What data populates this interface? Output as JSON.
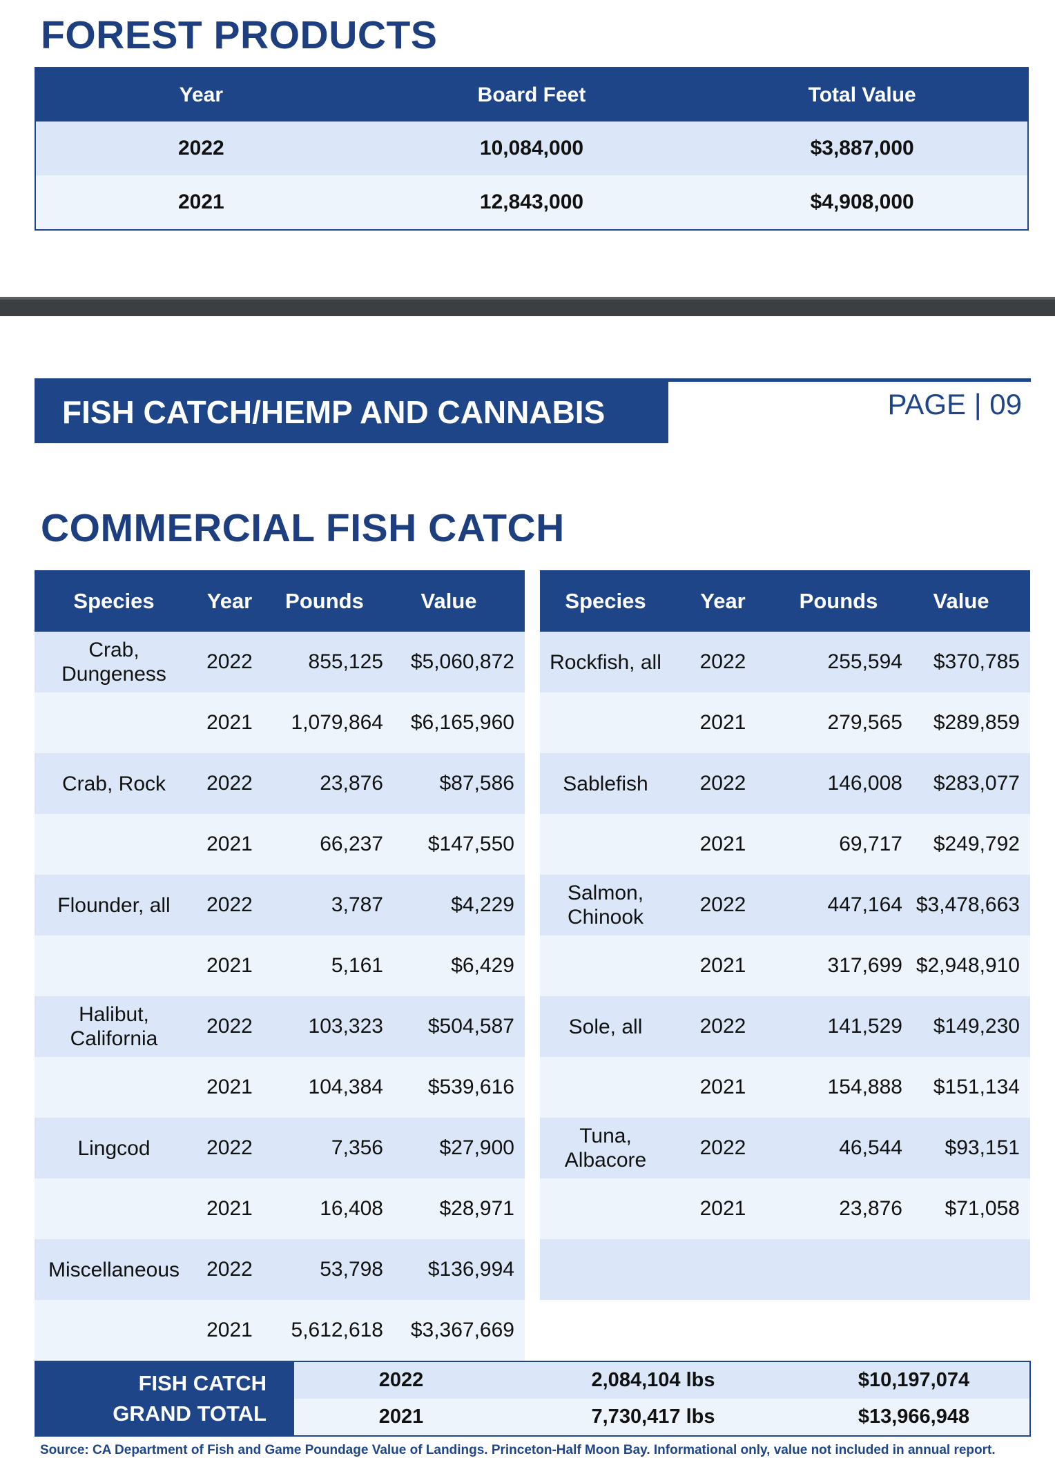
{
  "forest": {
    "title": "FOREST PRODUCTS",
    "headers": {
      "year": "Year",
      "board_feet": "Board Feet",
      "total_value": "Total Value"
    },
    "rows": [
      {
        "year": "2022",
        "board_feet": "10,084,000",
        "total_value": "$3,887,000"
      },
      {
        "year": "2021",
        "board_feet": "12,843,000",
        "total_value": "$4,908,000"
      }
    ]
  },
  "section": {
    "title": "FISH CATCH/HEMP AND CANNABIS",
    "page": "PAGE | 09"
  },
  "fish": {
    "title": "COMMERCIAL FISH CATCH",
    "headers": {
      "species": "Species",
      "year": "Year",
      "pounds": "Pounds",
      "value": "Value"
    },
    "left": [
      {
        "species": "Crab, Dungeness",
        "year": "2022",
        "pounds": "855,125",
        "value": "$5,060,872"
      },
      {
        "species": "",
        "year": "2021",
        "pounds": "1,079,864",
        "value": "$6,165,960"
      },
      {
        "species": "Crab, Rock",
        "year": "2022",
        "pounds": "23,876",
        "value": "$87,586"
      },
      {
        "species": "",
        "year": "2021",
        "pounds": "66,237",
        "value": "$147,550"
      },
      {
        "species": "Flounder, all",
        "year": "2022",
        "pounds": "3,787",
        "value": "$4,229"
      },
      {
        "species": "",
        "year": "2021",
        "pounds": "5,161",
        "value": "$6,429"
      },
      {
        "species": "Halibut, California",
        "year": "2022",
        "pounds": "103,323",
        "value": "$504,587"
      },
      {
        "species": "",
        "year": "2021",
        "pounds": "104,384",
        "value": "$539,616"
      },
      {
        "species": "Lingcod",
        "year": "2022",
        "pounds": "7,356",
        "value": "$27,900"
      },
      {
        "species": "",
        "year": "2021",
        "pounds": "16,408",
        "value": "$28,971"
      },
      {
        "species": "Miscellaneous",
        "year": "2022",
        "pounds": "53,798",
        "value": "$136,994"
      },
      {
        "species": "",
        "year": "2021",
        "pounds": "5,612,618",
        "value": "$3,367,669"
      }
    ],
    "right": [
      {
        "species": "Rockfish, all",
        "year": "2022",
        "pounds": "255,594",
        "value": "$370,785"
      },
      {
        "species": "",
        "year": "2021",
        "pounds": "279,565",
        "value": "$289,859"
      },
      {
        "species": "Sablefish",
        "year": "2022",
        "pounds": "146,008",
        "value": "$283,077"
      },
      {
        "species": "",
        "year": "2021",
        "pounds": "69,717",
        "value": "$249,792"
      },
      {
        "species": "Salmon, Chinook",
        "year": "2022",
        "pounds": "447,164",
        "value": "$3,478,663"
      },
      {
        "species": "",
        "year": "2021",
        "pounds": "317,699",
        "value": "$2,948,910"
      },
      {
        "species": "Sole, all",
        "year": "2022",
        "pounds": "141,529",
        "value": "$149,230"
      },
      {
        "species": "",
        "year": "2021",
        "pounds": "154,888",
        "value": "$151,134"
      },
      {
        "species": "Tuna, Albacore",
        "year": "2022",
        "pounds": "46,544",
        "value": "$93,151"
      },
      {
        "species": "",
        "year": "2021",
        "pounds": "23,876",
        "value": "$71,058"
      },
      {
        "species": "",
        "year": "",
        "pounds": "",
        "value": ""
      },
      {
        "species": "",
        "year": "",
        "pounds": "",
        "value": ""
      }
    ],
    "grand_total": {
      "label_line1": "FISH CATCH",
      "label_line2": "GRAND TOTAL",
      "rows": [
        {
          "year": "2022",
          "pounds": "2,084,104 lbs",
          "value": "$10,197,074"
        },
        {
          "year": "2021",
          "pounds": "7,730,417 lbs",
          "value": "$13,966,948"
        }
      ]
    }
  },
  "source": "Source: CA Department of Fish and Game Poundage Value of Landings. Princeton-Half Moon Bay. Informational only, value not included in annual report."
}
